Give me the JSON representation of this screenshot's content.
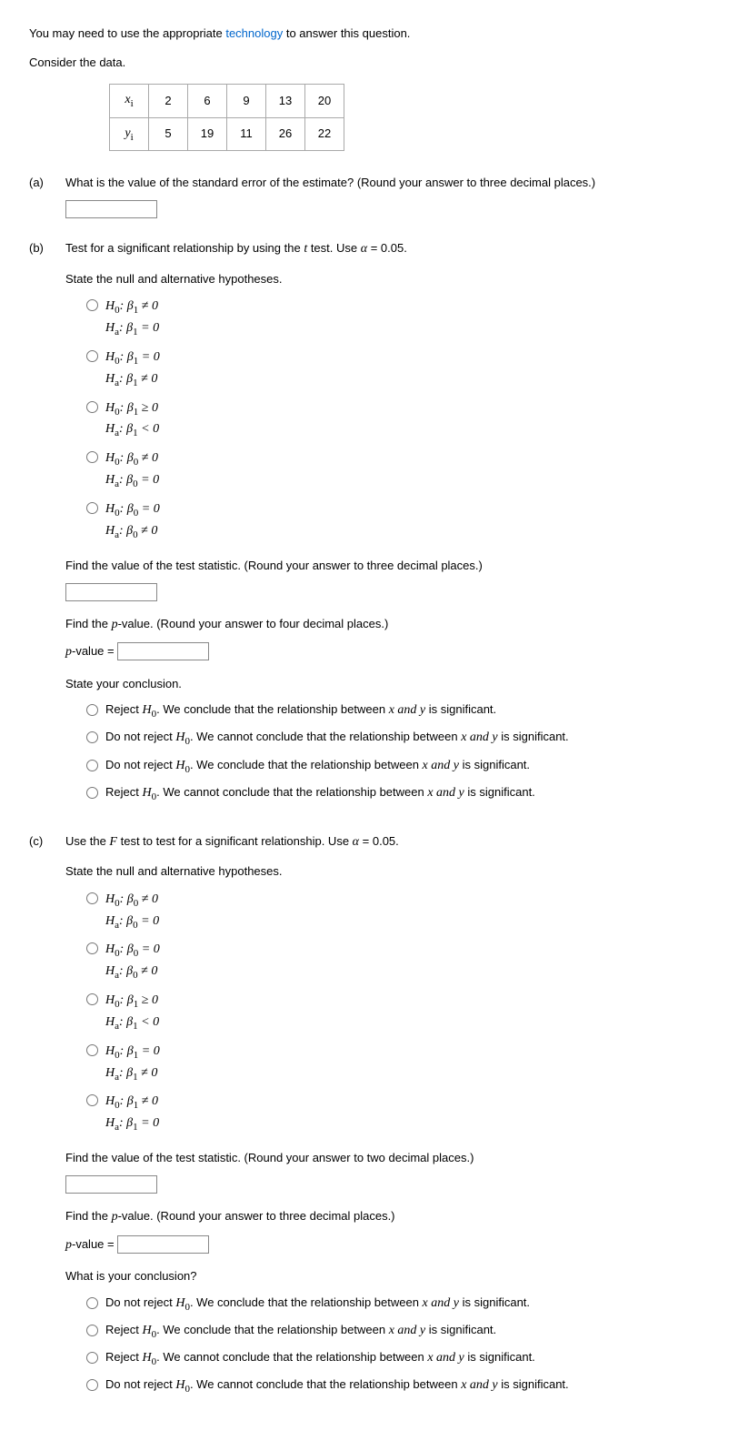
{
  "intro": {
    "prefix": "You may need to use the appropriate ",
    "link": "technology",
    "suffix": " to answer this question."
  },
  "consider": "Consider the data.",
  "table": {
    "row1_header": "xᵢ",
    "row2_header": "yᵢ",
    "x": [
      "2",
      "6",
      "9",
      "13",
      "20"
    ],
    "y": [
      "5",
      "19",
      "11",
      "26",
      "22"
    ]
  },
  "a": {
    "label": "(a)",
    "q": "What is the value of the standard error of the estimate? (Round your answer to three decimal places.)"
  },
  "b": {
    "label": "(b)",
    "q_prefix": "Test for a significant relationship by using the ",
    "q_t": "t",
    "q_mid": " test. Use ",
    "q_alpha": "α",
    "q_suffix": " = 0.05.",
    "state": "State the null and alternative hypotheses.",
    "hyp": [
      {
        "h0": "H₀: β₁ ≠ 0",
        "ha": "Hₐ: β₁ = 0"
      },
      {
        "h0": "H₀: β₁ = 0",
        "ha": "Hₐ: β₁ ≠ 0"
      },
      {
        "h0": "H₀: β₁ ≥ 0",
        "ha": "Hₐ: β₁ < 0"
      },
      {
        "h0": "H₀: β₀ ≠ 0",
        "ha": "Hₐ: β₀ = 0"
      },
      {
        "h0": "H₀: β₀ = 0",
        "ha": "Hₐ: β₀ ≠ 0"
      }
    ],
    "test_stat": "Find the value of the test statistic. (Round your answer to three decimal places.)",
    "pval_q": "Find the ",
    "pval_p": "p",
    "pval_q2": "-value. (Round your answer to four decimal places.)",
    "pval_label_pre": "p",
    "pval_label": "-value = ",
    "concl": "State your conclusion.",
    "concl_opts": [
      {
        "pre": "Reject ",
        "h": "H₀",
        "post": ". We conclude that the relationship between ",
        "xy": "x and y",
        "tail": " is significant."
      },
      {
        "pre": "Do not reject ",
        "h": "H₀",
        "post": ". We cannot conclude that the relationship between ",
        "xy": "x and y",
        "tail": " is significant."
      },
      {
        "pre": "Do not reject ",
        "h": "H₀",
        "post": ". We conclude that the relationship between ",
        "xy": "x and y",
        "tail": " is significant."
      },
      {
        "pre": "Reject ",
        "h": "H₀",
        "post": ". We cannot conclude that the relationship between ",
        "xy": "x and y",
        "tail": " is significant."
      }
    ]
  },
  "c": {
    "label": "(c)",
    "q_prefix": "Use the ",
    "q_f": "F",
    "q_mid": " test to test for a significant relationship. Use ",
    "q_alpha": "α",
    "q_suffix": " = 0.05.",
    "state": "State the null and alternative hypotheses.",
    "hyp": [
      {
        "h0": "H₀: β₀ ≠ 0",
        "ha": "Hₐ: β₀ = 0"
      },
      {
        "h0": "H₀: β₀ = 0",
        "ha": "Hₐ: β₀ ≠ 0"
      },
      {
        "h0": "H₀: β₁ ≥ 0",
        "ha": "Hₐ: β₁ < 0"
      },
      {
        "h0": "H₀: β₁ = 0",
        "ha": "Hₐ: β₁ ≠ 0"
      },
      {
        "h0": "H₀: β₁ ≠ 0",
        "ha": "Hₐ: β₁ = 0"
      }
    ],
    "test_stat": "Find the value of the test statistic. (Round your answer to two decimal places.)",
    "pval_q": "Find the ",
    "pval_p": "p",
    "pval_q2": "-value. (Round your answer to three decimal places.)",
    "pval_label_pre": "p",
    "pval_label": "-value = ",
    "concl": "What is your conclusion?",
    "concl_opts": [
      {
        "pre": "Do not reject ",
        "h": "H₀",
        "post": ". We conclude that the relationship between ",
        "xy": "x and y",
        "tail": " is significant."
      },
      {
        "pre": "Reject ",
        "h": "H₀",
        "post": ". We conclude that the relationship between ",
        "xy": "x and y",
        "tail": " is significant."
      },
      {
        "pre": "Reject ",
        "h": "H₀",
        "post": ". We cannot conclude that the relationship between ",
        "xy": "x and y",
        "tail": " is significant."
      },
      {
        "pre": "Do not reject ",
        "h": "H₀",
        "post": ". We cannot conclude that the relationship between ",
        "xy": "x and y",
        "tail": " is significant."
      }
    ]
  }
}
